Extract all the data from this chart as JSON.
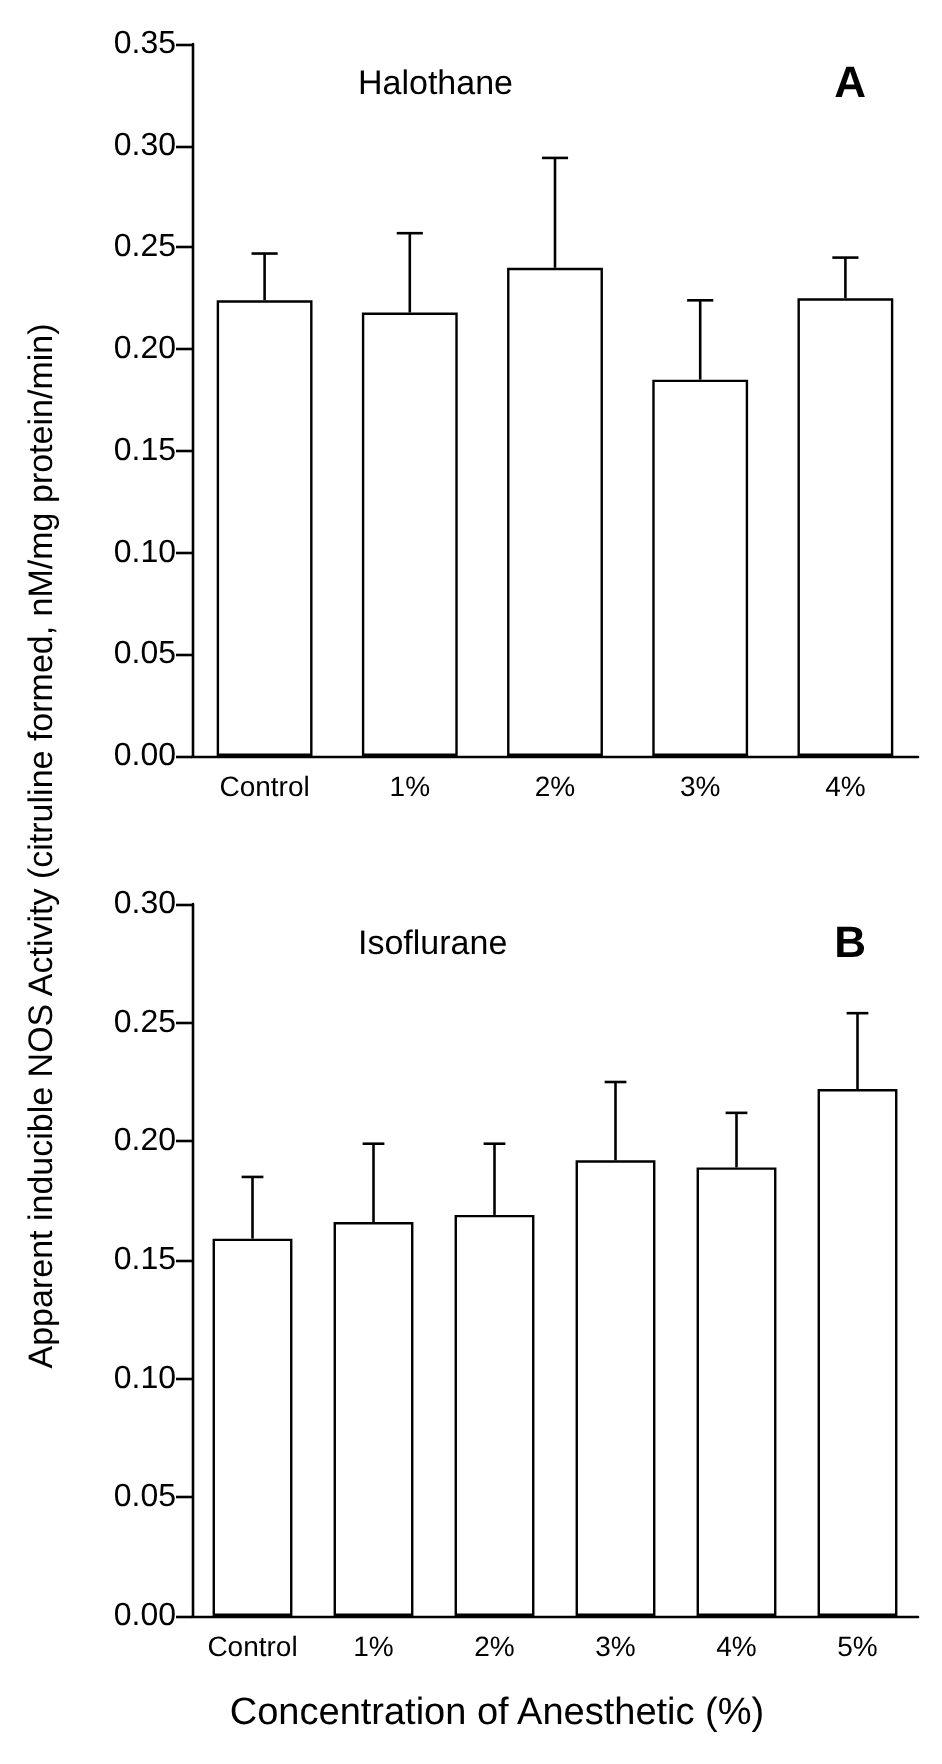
{
  "chart_data": [
    {
      "type": "bar",
      "title": "Halothane",
      "ylabel": "Apparent inducible NOS Activity (citruline formed, nM/mg protein/min)",
      "annotations": [
        "A"
      ],
      "categories": [
        "Control",
        "1%",
        "2%",
        "3%",
        "4%"
      ],
      "values": [
        0.224,
        0.218,
        0.24,
        0.185,
        0.225
      ],
      "color": "#ffffff",
      "errors": [
        [
          0.224,
          0.247
        ],
        [
          0.218,
          0.257
        ],
        [
          0.24,
          0.294
        ],
        [
          0.185,
          0.224
        ],
        [
          0.225,
          0.245
        ]
      ],
      "ylim": [
        0,
        0.35
      ],
      "yticks": [
        {
          "value": 0,
          "label": "0.00"
        },
        0.05,
        {
          "value": 0.1,
          "label": "0.10"
        },
        0.15,
        {
          "value": 0.2,
          "label": "0.20"
        },
        0.25,
        {
          "value": 0.3,
          "label": "0.30"
        },
        0.35
      ]
    },
    {
      "type": "bar",
      "title": "Isoflurane",
      "xlabel": "Concentration of Anesthetic (%)",
      "annotations": [
        "B"
      ],
      "categories": [
        "Control",
        "1%",
        "2%",
        "3%",
        "4%",
        "5%"
      ],
      "values": [
        0.159,
        0.166,
        0.169,
        0.192,
        0.189,
        0.222
      ],
      "color": "#ffffff",
      "errors": [
        [
          0.159,
          0.185
        ],
        [
          0.166,
          0.199
        ],
        [
          0.169,
          0.199
        ],
        [
          0.192,
          0.225
        ],
        [
          0.189,
          0.212
        ],
        [
          0.222,
          0.254
        ]
      ],
      "ylim": [
        0,
        0.3
      ],
      "yticks": [
        {
          "value": 0,
          "label": "0.00"
        },
        0.05,
        {
          "value": 0.1,
          "label": "0.10"
        },
        0.15,
        {
          "value": 0.2,
          "label": "0.20"
        },
        0.25,
        {
          "value": 0.3,
          "label": "0.30"
        }
      ]
    }
  ]
}
